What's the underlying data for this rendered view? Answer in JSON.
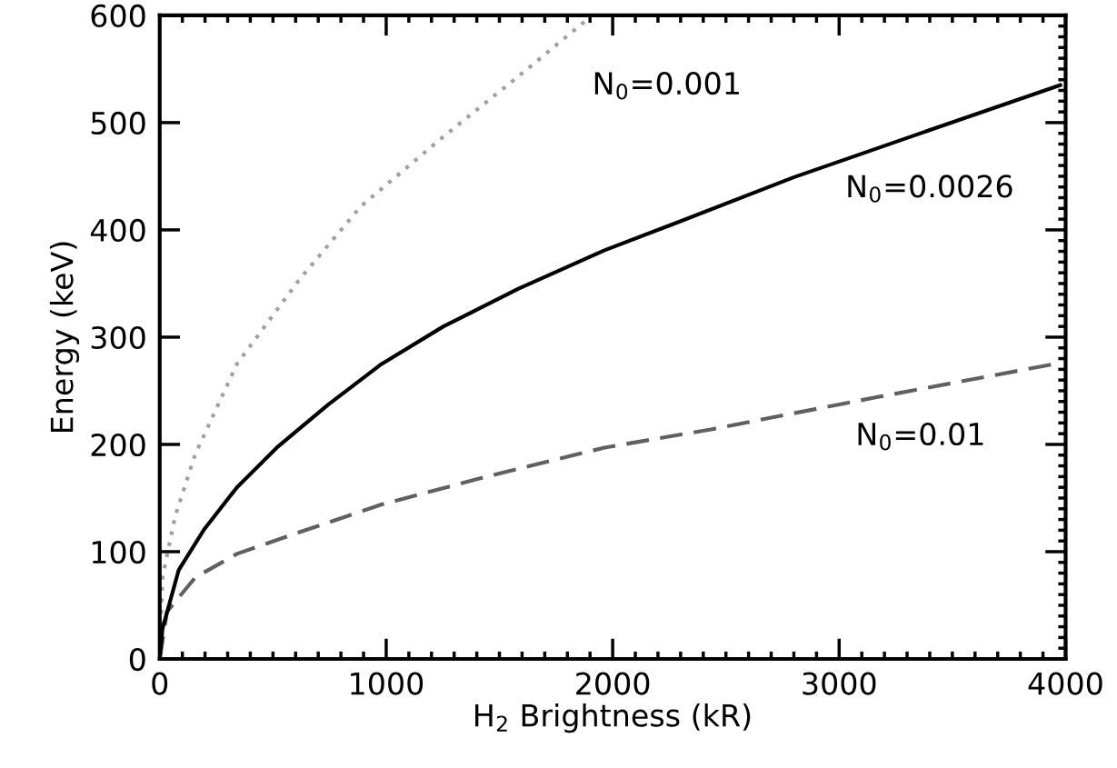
{
  "chart_data": {
    "type": "line",
    "xlabel": "H$_{2}$ Brightness (kR)",
    "ylabel": "Energy (keV)",
    "xlim": [
      0,
      4000
    ],
    "ylim": [
      0,
      600
    ],
    "xticks": [
      0,
      1000,
      2000,
      3000,
      4000
    ],
    "yticks": [
      0,
      100,
      200,
      300,
      400,
      500,
      600
    ],
    "grid": false,
    "legend": false,
    "marker": "none",
    "series": [
      {
        "color": "#a0a0a0",
        "line_style": "dotted",
        "x": [
          0,
          12,
          68,
          157,
          341,
          614,
          888,
          1253,
          1618,
          1892
        ],
        "values": [
          0,
          76,
          133,
          191,
          275,
          353,
          422,
          487,
          549,
          597
        ]
      },
      {
        "color": "#000000",
        "line_style": "solid",
        "x": [
          0,
          12,
          84,
          197,
          341,
          522,
          743,
          980,
          1253,
          1582,
          1964,
          2249,
          2799,
          3345,
          3976
        ],
        "values": [
          0,
          28,
          83,
          121,
          160,
          198,
          237,
          275,
          310,
          345,
          381,
          404,
          449,
          489,
          535
        ]
      },
      {
        "color": "#606060",
        "line_style": "dashed",
        "x": [
          0,
          32,
          157,
          341,
          614,
          980,
          1462,
          1964,
          2434,
          3165,
          3976
        ],
        "values": [
          0,
          44,
          76,
          98,
          118,
          144,
          171,
          197,
          214,
          244,
          276
        ]
      }
    ],
    "annotations": [
      "N$_{0}$=0.001",
      "N$_{0}$=0.0026",
      "N$_{0}$=0.01"
    ]
  }
}
